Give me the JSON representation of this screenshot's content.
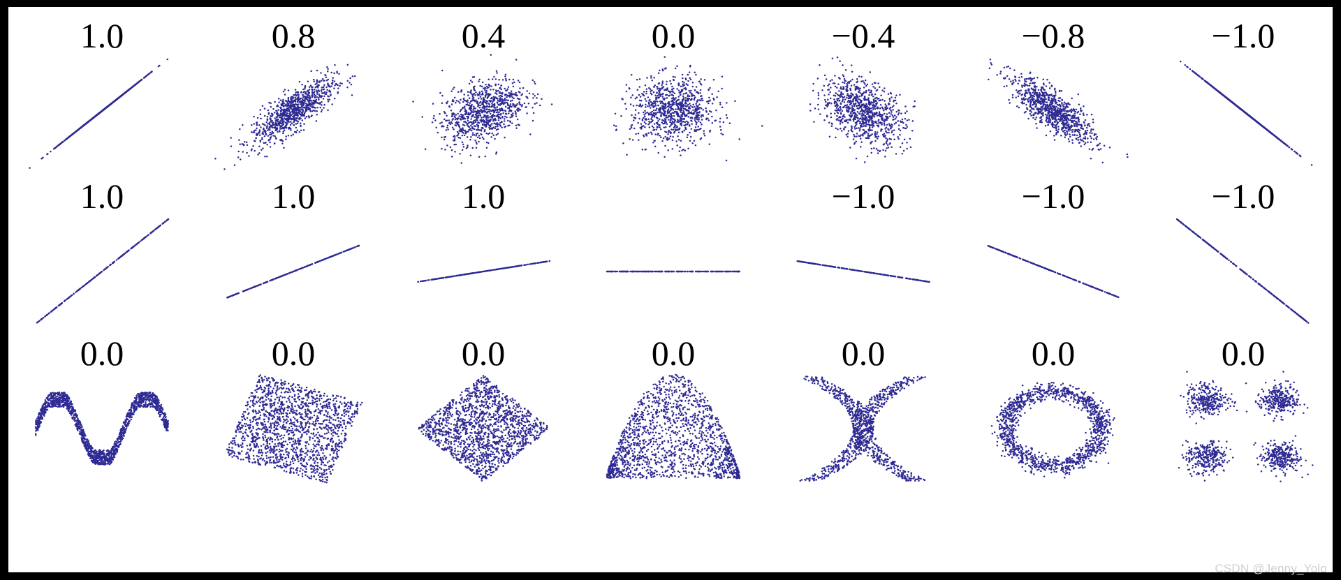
{
  "chart_data": {
    "type": "scatter",
    "description_source": "grid of 21 scatter panels each labeled with a correlation coefficient",
    "point_color": "#2e2a93",
    "rows": [
      {
        "panels": [
          {
            "label": "1.0",
            "pattern": "gaussian",
            "r": 1.0
          },
          {
            "label": "0.8",
            "pattern": "gaussian",
            "r": 0.8
          },
          {
            "label": "0.4",
            "pattern": "gaussian",
            "r": 0.4
          },
          {
            "label": "0.0",
            "pattern": "gaussian",
            "r": 0.0
          },
          {
            "label": "−0.4",
            "pattern": "gaussian",
            "r": -0.4
          },
          {
            "label": "−0.8",
            "pattern": "gaussian",
            "r": -0.8
          },
          {
            "label": "−1.0",
            "pattern": "gaussian",
            "r": -1.0
          }
        ]
      },
      {
        "panels": [
          {
            "label": "1.0",
            "pattern": "line",
            "slope": 1.0
          },
          {
            "label": "1.0",
            "pattern": "line",
            "slope": 0.5
          },
          {
            "label": "1.0",
            "pattern": "line",
            "slope": 0.2
          },
          {
            "label": "",
            "pattern": "line",
            "slope": 0.0
          },
          {
            "label": "−1.0",
            "pattern": "line",
            "slope": -0.2
          },
          {
            "label": "−1.0",
            "pattern": "line",
            "slope": -0.5
          },
          {
            "label": "−1.0",
            "pattern": "line",
            "slope": -1.0
          }
        ]
      },
      {
        "panels": [
          {
            "label": "0.0",
            "pattern": "wave"
          },
          {
            "label": "0.0",
            "pattern": "rotated-square"
          },
          {
            "label": "0.0",
            "pattern": "diamond"
          },
          {
            "label": "0.0",
            "pattern": "parabola"
          },
          {
            "label": "0.0",
            "pattern": "x-shape"
          },
          {
            "label": "0.0",
            "pattern": "ring"
          },
          {
            "label": "0.0",
            "pattern": "four-clusters"
          }
        ]
      }
    ]
  },
  "watermark": "CSDN @Jenny_Yolo"
}
